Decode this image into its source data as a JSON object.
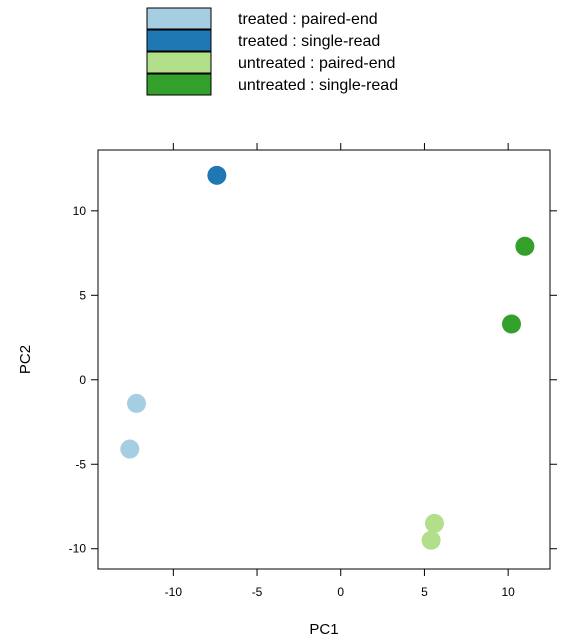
{
  "chart_data": {
    "type": "scatter",
    "title": "",
    "xlabel": "PC1",
    "ylabel": "PC2",
    "xlim": [
      -14.5,
      12.5
    ],
    "ylim": [
      -11.2,
      13.6
    ],
    "xticks": [
      -10,
      -5,
      0,
      5,
      10
    ],
    "yticks": [
      -10,
      -5,
      0,
      5,
      10
    ],
    "grid": false,
    "legend_placement": "top",
    "series": [
      {
        "name": "treated : paired-end",
        "color": "#a6cee3",
        "points": [
          {
            "x": -12.2,
            "y": -1.4
          },
          {
            "x": -12.6,
            "y": -4.1
          }
        ]
      },
      {
        "name": "treated : single-read",
        "color": "#1f78b4",
        "points": [
          {
            "x": -7.4,
            "y": 12.1
          }
        ]
      },
      {
        "name": "untreated : paired-end",
        "color": "#b2df8a",
        "points": [
          {
            "x": 5.6,
            "y": -8.5
          },
          {
            "x": 5.4,
            "y": -9.5
          }
        ]
      },
      {
        "name": "untreated : single-read",
        "color": "#33a02c",
        "points": [
          {
            "x": 11.0,
            "y": 7.9
          },
          {
            "x": 10.2,
            "y": 3.3
          }
        ]
      }
    ]
  }
}
